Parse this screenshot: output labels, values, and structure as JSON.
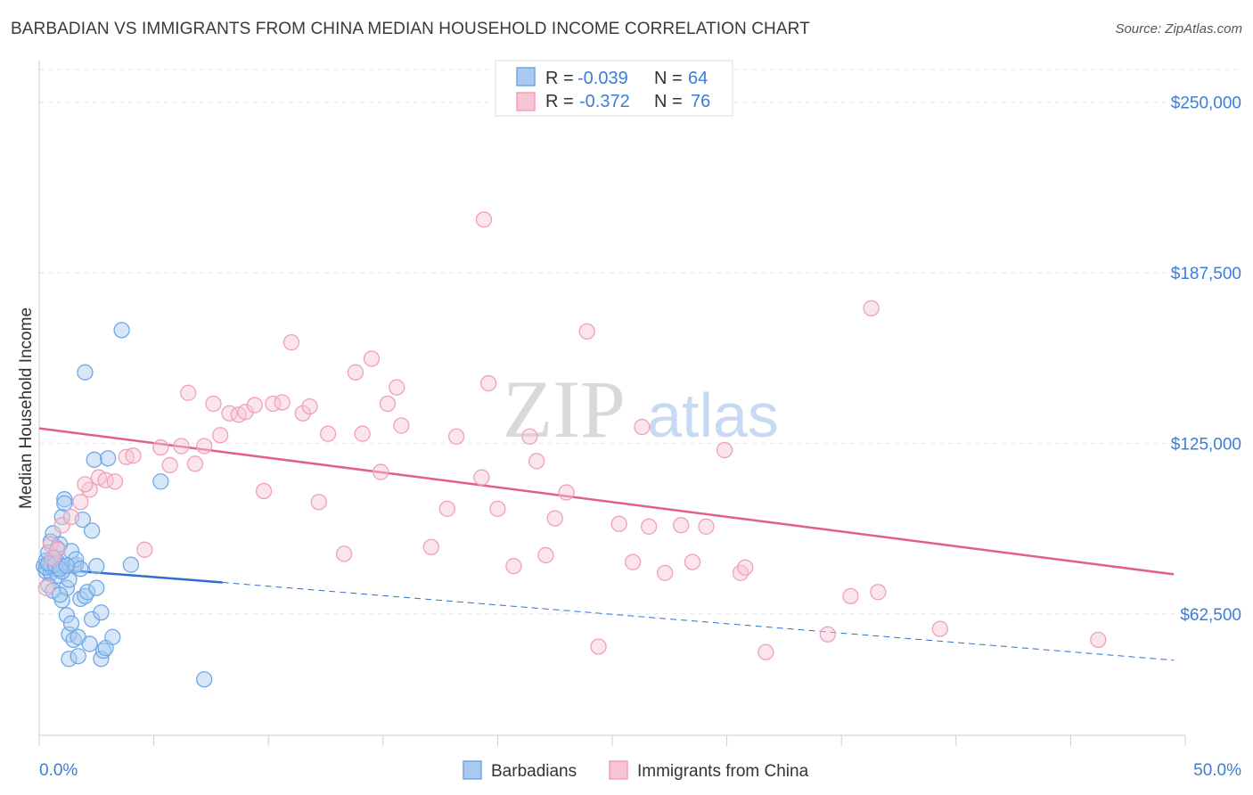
{
  "chart_data": {
    "type": "scatter",
    "title": "BARBADIAN VS IMMIGRANTS FROM CHINA MEDIAN HOUSEHOLD INCOME CORRELATION CHART",
    "source": "Source: ZipAtlas.com",
    "ylabel": "Median Household Income",
    "xlim": [
      0,
      50
    ],
    "ylim": [
      18000,
      262000
    ],
    "x_tick_labels": [
      "0.0%",
      "50.0%"
    ],
    "y_ticks": [
      {
        "value": 62500,
        "label": "$62,500"
      },
      {
        "value": 125000,
        "label": "$125,000"
      },
      {
        "value": 187500,
        "label": "$187,500"
      },
      {
        "value": 250000,
        "label": "$250,000"
      }
    ],
    "watermark": {
      "zip": "ZIP",
      "atlas": "atlas"
    },
    "legend": [
      {
        "r_label": "R =",
        "r_value": "-0.039",
        "n_label": "N =",
        "n_value": "64"
      },
      {
        "r_label": "R =",
        "r_value": "-0.372",
        "n_label": "N =",
        "n_value": "76"
      }
    ],
    "series": [
      {
        "name": "Barbadians",
        "color": "#6fa8e8",
        "fill": "#a9c9f0",
        "line_color": "#2f6fd0",
        "trend": {
          "x0": 0,
          "y0": 79300,
          "x1": 8,
          "y1": 74000,
          "x_dashed_end": 49.5,
          "y_dashed_end": 45500
        },
        "points": [
          [
            0.2,
            80000
          ],
          [
            0.3,
            78000
          ],
          [
            0.3,
            82000
          ],
          [
            0.4,
            85000
          ],
          [
            0.5,
            77500
          ],
          [
            0.5,
            89000
          ],
          [
            0.6,
            81000
          ],
          [
            0.6,
            92000
          ],
          [
            0.7,
            79000
          ],
          [
            0.7,
            83000
          ],
          [
            0.8,
            86500
          ],
          [
            0.8,
            76500
          ],
          [
            0.9,
            88000
          ],
          [
            1.0,
            80000
          ],
          [
            1.0,
            98000
          ],
          [
            1.0,
            67500
          ],
          [
            1.1,
            104500
          ],
          [
            1.1,
            103000
          ],
          [
            1.2,
            72000
          ],
          [
            1.2,
            62000
          ],
          [
            1.3,
            55000
          ],
          [
            1.3,
            46000
          ],
          [
            1.4,
            85500
          ],
          [
            1.4,
            59000
          ],
          [
            1.5,
            80000
          ],
          [
            1.5,
            53000
          ],
          [
            1.6,
            80500
          ],
          [
            1.6,
            82500
          ],
          [
            1.7,
            47000
          ],
          [
            1.7,
            54000
          ],
          [
            1.8,
            68000
          ],
          [
            1.8,
            79000
          ],
          [
            1.9,
            97000
          ],
          [
            2.0,
            69000
          ],
          [
            2.0,
            151000
          ],
          [
            2.1,
            70500
          ],
          [
            2.2,
            51500
          ],
          [
            2.3,
            60500
          ],
          [
            2.3,
            93000
          ],
          [
            2.4,
            119000
          ],
          [
            2.5,
            72000
          ],
          [
            2.5,
            80000
          ],
          [
            2.7,
            63000
          ],
          [
            2.7,
            46000
          ],
          [
            2.8,
            49000
          ],
          [
            2.9,
            50000
          ],
          [
            3.0,
            119500
          ],
          [
            3.2,
            54000
          ],
          [
            3.6,
            166500
          ],
          [
            4.0,
            80500
          ],
          [
            5.3,
            111000
          ],
          [
            7.2,
            38500
          ],
          [
            0.4,
            73000
          ],
          [
            0.6,
            71000
          ],
          [
            0.9,
            69500
          ],
          [
            1.3,
            75000
          ],
          [
            0.5,
            80000
          ],
          [
            0.8,
            81500
          ],
          [
            1.0,
            78000
          ],
          [
            0.3,
            79500
          ],
          [
            0.4,
            81000
          ],
          [
            0.7,
            80500
          ],
          [
            0.9,
            79000
          ],
          [
            1.2,
            80200
          ]
        ]
      },
      {
        "name": "Immigrants from China",
        "color": "#f0a0b8",
        "fill": "#f7c5d4",
        "line_color": "#e0608a",
        "trend": {
          "x0": 0,
          "y0": 130500,
          "x1": 49.5,
          "y1": 77000
        },
        "points": [
          [
            0.3,
            72000
          ],
          [
            0.5,
            88000
          ],
          [
            0.8,
            86000
          ],
          [
            1.0,
            95000
          ],
          [
            1.8,
            103500
          ],
          [
            2.2,
            108000
          ],
          [
            2.6,
            112500
          ],
          [
            2.9,
            111500
          ],
          [
            3.3,
            111000
          ],
          [
            3.8,
            120000
          ],
          [
            4.1,
            120500
          ],
          [
            4.6,
            86000
          ],
          [
            5.3,
            123500
          ],
          [
            5.7,
            117000
          ],
          [
            6.2,
            124000
          ],
          [
            6.5,
            143500
          ],
          [
            6.8,
            117500
          ],
          [
            7.2,
            124000
          ],
          [
            7.6,
            139500
          ],
          [
            7.9,
            128000
          ],
          [
            8.3,
            136000
          ],
          [
            8.7,
            135500
          ],
          [
            9.0,
            136500
          ],
          [
            9.4,
            139000
          ],
          [
            9.8,
            107500
          ],
          [
            10.2,
            139500
          ],
          [
            10.6,
            140000
          ],
          [
            11.0,
            162000
          ],
          [
            11.5,
            136000
          ],
          [
            11.8,
            138500
          ],
          [
            12.2,
            103500
          ],
          [
            12.6,
            128500
          ],
          [
            13.3,
            84500
          ],
          [
            13.8,
            151000
          ],
          [
            14.1,
            128500
          ],
          [
            14.5,
            156000
          ],
          [
            14.9,
            114500
          ],
          [
            15.2,
            139500
          ],
          [
            15.6,
            145500
          ],
          [
            15.8,
            131500
          ],
          [
            17.1,
            87000
          ],
          [
            17.8,
            101000
          ],
          [
            18.2,
            127500
          ],
          [
            19.3,
            112500
          ],
          [
            19.4,
            207000
          ],
          [
            19.6,
            147000
          ],
          [
            20.0,
            101000
          ],
          [
            20.7,
            80000
          ],
          [
            21.4,
            127500
          ],
          [
            21.7,
            118500
          ],
          [
            22.1,
            84000
          ],
          [
            22.5,
            97500
          ],
          [
            23.0,
            107000
          ],
          [
            23.9,
            166000
          ],
          [
            24.4,
            50500
          ],
          [
            25.3,
            95500
          ],
          [
            25.9,
            81500
          ],
          [
            26.3,
            131000
          ],
          [
            26.6,
            94500
          ],
          [
            27.3,
            77500
          ],
          [
            28.0,
            95000
          ],
          [
            28.5,
            81500
          ],
          [
            29.1,
            94500
          ],
          [
            29.9,
            122500
          ],
          [
            30.6,
            77500
          ],
          [
            30.8,
            79500
          ],
          [
            31.7,
            48500
          ],
          [
            34.4,
            55000
          ],
          [
            35.4,
            69000
          ],
          [
            36.3,
            174500
          ],
          [
            36.6,
            70500
          ],
          [
            39.3,
            57000
          ],
          [
            46.2,
            53000
          ],
          [
            0.6,
            83000
          ],
          [
            1.4,
            98000
          ],
          [
            2.0,
            110000
          ]
        ]
      }
    ]
  }
}
